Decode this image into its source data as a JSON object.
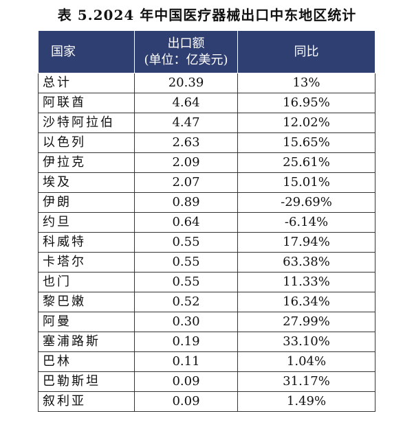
{
  "caption": "表 5.2024 年中国医疗器械出口中东地区统计",
  "table": {
    "headers": {
      "country": "国家",
      "export_line1": "出口额",
      "export_line2": "(单位：亿美元)",
      "yoy": "同比"
    },
    "rows": [
      {
        "country": "总计",
        "export": "20.39",
        "yoy": "13%"
      },
      {
        "country": "阿联酋",
        "export": "4.64",
        "yoy": "16.95%"
      },
      {
        "country": "沙特阿拉伯",
        "export": "4.47",
        "yoy": "12.02%"
      },
      {
        "country": "以色列",
        "export": "2.63",
        "yoy": "15.65%"
      },
      {
        "country": "伊拉克",
        "export": "2.09",
        "yoy": "25.61%"
      },
      {
        "country": "埃及",
        "export": "2.07",
        "yoy": "15.01%"
      },
      {
        "country": "伊朗",
        "export": "0.89",
        "yoy": "-29.69%"
      },
      {
        "country": "约旦",
        "export": "0.64",
        "yoy": "-6.14%"
      },
      {
        "country": "科威特",
        "export": "0.55",
        "yoy": "17.94%"
      },
      {
        "country": "卡塔尔",
        "export": "0.55",
        "yoy": "63.38%"
      },
      {
        "country": "也门",
        "export": "0.55",
        "yoy": "11.33%"
      },
      {
        "country": "黎巴嫩",
        "export": "0.52",
        "yoy": "16.34%"
      },
      {
        "country": "阿曼",
        "export": "0.30",
        "yoy": "27.99%"
      },
      {
        "country": "塞浦路斯",
        "export": "0.19",
        "yoy": "33.10%"
      },
      {
        "country": "巴林",
        "export": "0.11",
        "yoy": "1.04%"
      },
      {
        "country": "巴勒斯坦",
        "export": "0.09",
        "yoy": "31.17%"
      },
      {
        "country": "叙利亚",
        "export": "0.09",
        "yoy": "1.49%"
      }
    ]
  }
}
